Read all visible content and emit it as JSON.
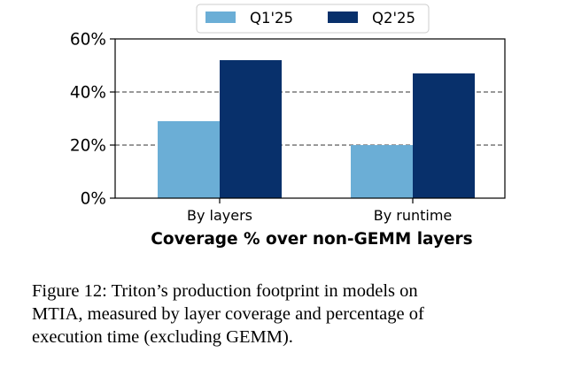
{
  "chart_data": {
    "type": "bar",
    "title": "",
    "xlabel": "Coverage % over non-GEMM layers",
    "ylabel": "",
    "categories": [
      "By layers",
      "By runtime"
    ],
    "series": [
      {
        "name": "Q1'25",
        "values": [
          29,
          20
        ]
      },
      {
        "name": "Q2'25",
        "values": [
          52,
          47
        ]
      }
    ],
    "ylim": [
      0,
      60
    ],
    "yticks": [
      0,
      20,
      40,
      60
    ],
    "ytick_labels": [
      "0%",
      "20%",
      "40%",
      "60%"
    ],
    "grid": "horizontal dashed at 20% and 40%",
    "legend_placement": "top-center"
  },
  "colors": {
    "q1": "#6baed6",
    "q2": "#08306b"
  },
  "caption": {
    "line1": "Figure 12:  Triton’s production footprint in models on",
    "line2": "MTIA, measured by layer coverage and percentage of",
    "line3": "execution time (excluding GEMM)."
  }
}
